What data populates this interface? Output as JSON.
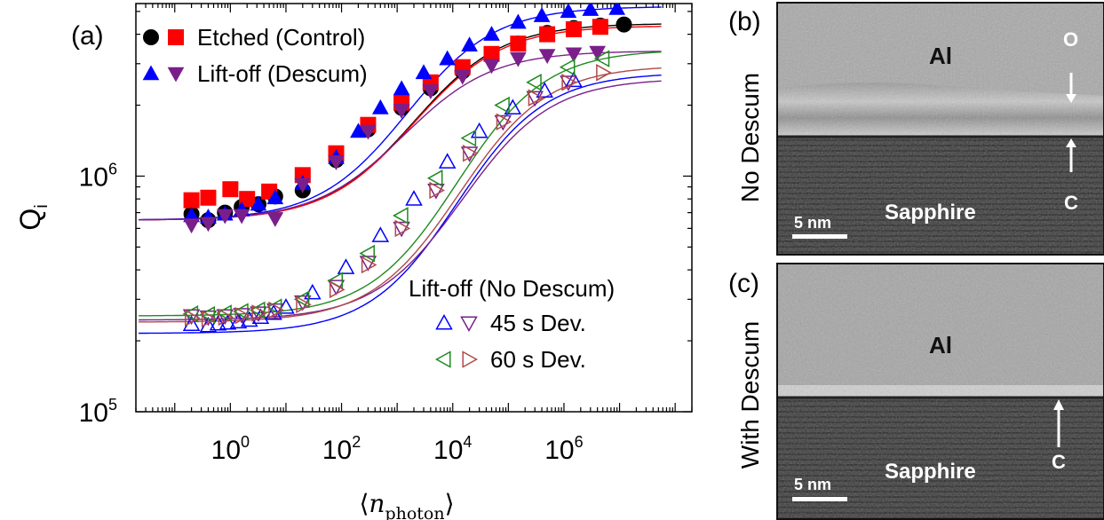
{
  "panel_a": {
    "label": "(a)",
    "chart_data": {
      "type": "scatter",
      "xlabel": "⟨n_photon⟩",
      "ylabel": "Q_i",
      "x_scale": "log",
      "y_scale": "log",
      "xlim": [
        0.02,
        200000000
      ],
      "ylim": [
        100000,
        5400000
      ],
      "x_ticks": [
        {
          "value": 1,
          "base": "10",
          "exp": "0"
        },
        {
          "value": 100,
          "base": "10",
          "exp": "2"
        },
        {
          "value": 10000,
          "base": "10",
          "exp": "4"
        },
        {
          "value": 1000000,
          "base": "10",
          "exp": "6"
        }
      ],
      "y_ticks": [
        {
          "value": 100000,
          "base": "10",
          "exp": "5"
        },
        {
          "value": 1000000,
          "base": "10",
          "exp": "6"
        }
      ],
      "legend_groups": [
        {
          "title": "",
          "entries": [
            {
              "series": [
                "etched_circle",
                "etched_square"
              ],
              "label": "Etched (Control)"
            },
            {
              "series": [
                "liftoff_up",
                "liftoff_down"
              ],
              "label": "Lift-off (Descum)"
            }
          ]
        },
        {
          "title": "Lift-off (No Descum)",
          "entries": [
            {
              "series": [
                "nd45_up",
                "nd45_down"
              ],
              "label": "45 s Dev."
            },
            {
              "series": [
                "nd60_left",
                "nd60_right"
              ],
              "label": "60 s Dev."
            }
          ]
        }
      ],
      "series": [
        {
          "id": "etched_circle",
          "marker": "circle",
          "filled": true,
          "color": "#000000",
          "x": [
            0.2,
            0.4,
            0.8,
            1.6,
            3.2,
            6.4,
            20,
            80,
            300,
            1200,
            4000,
            15000,
            50000,
            150000,
            500000,
            1500000,
            4500000,
            12000000
          ],
          "y": [
            690000,
            650000,
            700000,
            740000,
            760000,
            820000,
            870000,
            1170000,
            1580000,
            1950000,
            2360000,
            2780000,
            3200000,
            3650000,
            4050000,
            4250000,
            4350000,
            4400000
          ]
        },
        {
          "id": "etched_square",
          "marker": "square",
          "filled": true,
          "color": "#ff0000",
          "x": [
            0.2,
            0.4,
            1.0,
            2.0,
            5.0,
            20,
            80,
            300,
            1200,
            4000,
            15000,
            50000,
            150000,
            500000,
            1500000,
            4500000
          ],
          "y": [
            790000,
            810000,
            880000,
            800000,
            860000,
            1010000,
            1250000,
            1650000,
            2050000,
            2500000,
            2900000,
            3300000,
            3650000,
            4000000,
            4200000,
            4300000
          ]
        },
        {
          "id": "liftoff_up",
          "marker": "triangle-up",
          "filled": true,
          "color": "#0000ff",
          "x": [
            0.2,
            0.4,
            0.8,
            1.6,
            3.2,
            6.4,
            20,
            80,
            200,
            500,
            1200,
            3000,
            8000,
            20000,
            50000,
            150000,
            400000,
            1200000,
            3000000,
            9000000
          ],
          "y": [
            680000,
            670000,
            690000,
            720000,
            760000,
            810000,
            930000,
            1200000,
            1550000,
            1950000,
            2350000,
            2750000,
            3150000,
            3600000,
            4000000,
            4500000,
            4800000,
            5000000,
            5100000,
            5150000
          ]
        },
        {
          "id": "liftoff_down",
          "marker": "triangle-down",
          "filled": true,
          "color": "#7a1f8a",
          "x": [
            0.2,
            0.4,
            0.8,
            1.6,
            6.4,
            20,
            80,
            300,
            1200,
            4000,
            15000,
            50000,
            150000,
            500000,
            1500000,
            4000000
          ],
          "y": [
            620000,
            630000,
            680000,
            680000,
            660000,
            920000,
            1150000,
            1550000,
            1900000,
            2300000,
            2650000,
            2950000,
            3150000,
            3250000,
            3300000,
            3350000
          ]
        },
        {
          "id": "nd45_up",
          "marker": "triangle-up",
          "filled": false,
          "color": "#0000ff",
          "x": [
            0.2,
            0.4,
            0.6,
            0.9,
            1.4,
            2.2,
            3.5,
            6,
            10,
            30,
            120,
            500,
            2000,
            8000,
            30000,
            120000,
            450000,
            1500000
          ],
          "y": [
            235000,
            232000,
            236000,
            238000,
            241000,
            245000,
            252000,
            262000,
            278000,
            320000,
            410000,
            560000,
            800000,
            1150000,
            1550000,
            1950000,
            2300000,
            2550000
          ]
        },
        {
          "id": "nd45_down",
          "marker": "triangle-down",
          "filled": false,
          "color": "#7a1f8a",
          "x": [
            0.2,
            0.4,
            0.8,
            1.6,
            3.2,
            6.4,
            20,
            80,
            300,
            1200,
            5000,
            20000,
            80000,
            300000,
            1200000
          ],
          "y": [
            255000,
            252000,
            255000,
            258000,
            262000,
            270000,
            292000,
            340000,
            430000,
            600000,
            870000,
            1250000,
            1700000,
            2150000,
            2500000
          ]
        },
        {
          "id": "nd60_left",
          "marker": "triangle-left",
          "filled": false,
          "color": "#1f8a1f",
          "x": [
            0.2,
            0.4,
            0.8,
            1.6,
            3.2,
            6.4,
            20,
            80,
            300,
            1200,
            5000,
            20000,
            80000,
            300000,
            1200000,
            5000000
          ],
          "y": [
            260000,
            258000,
            262000,
            266000,
            270000,
            278000,
            300000,
            360000,
            470000,
            680000,
            980000,
            1450000,
            2000000,
            2500000,
            2900000,
            3150000
          ]
        },
        {
          "id": "nd60_right",
          "marker": "triangle-right",
          "filled": false,
          "color": "#b04a4a",
          "x": [
            0.2,
            0.4,
            0.8,
            1.6,
            3.2,
            6.4,
            20,
            80,
            300,
            1200,
            5000,
            20000,
            80000,
            300000,
            1200000,
            5000000
          ],
          "y": [
            250000,
            248000,
            252000,
            256000,
            262000,
            270000,
            285000,
            330000,
            420000,
            600000,
            870000,
            1250000,
            1700000,
            2150000,
            2500000,
            2750000
          ]
        }
      ],
      "fits": [
        {
          "color": "#000000",
          "low": 650000,
          "high": 4450000,
          "center": 2000,
          "width": 7
        },
        {
          "color": "#ff0000",
          "low": 650000,
          "high": 4350000,
          "center": 2000,
          "width": 7
        },
        {
          "color": "#0000ff",
          "low": 650000,
          "high": 5250000,
          "center": 1500,
          "width": 7
        },
        {
          "color": "#7a1f8a",
          "low": 650000,
          "high": 3400000,
          "center": 1300,
          "width": 7
        },
        {
          "color": "#0000ff",
          "low": 215000,
          "high": 2750000,
          "center": 12000,
          "width": 7
        },
        {
          "color": "#7a1f8a",
          "low": 245000,
          "high": 2600000,
          "center": 15000,
          "width": 7
        },
        {
          "color": "#1f8a1f",
          "low": 255000,
          "high": 3450000,
          "center": 12000,
          "width": 7
        },
        {
          "color": "#b04a4a",
          "low": 240000,
          "high": 2950000,
          "center": 13000,
          "width": 7
        }
      ]
    }
  },
  "panel_b": {
    "label": "(b)",
    "side_label": "No Descum",
    "top_layer": "Al",
    "bottom_layer": "Sapphire",
    "scale_bar": "5 nm",
    "arrow_top": "O",
    "arrow_bottom": "C"
  },
  "panel_c": {
    "label": "(c)",
    "side_label": "With Descum",
    "top_layer": "Al",
    "bottom_layer": "Sapphire",
    "scale_bar": "5 nm",
    "arrow_bottom": "C"
  }
}
